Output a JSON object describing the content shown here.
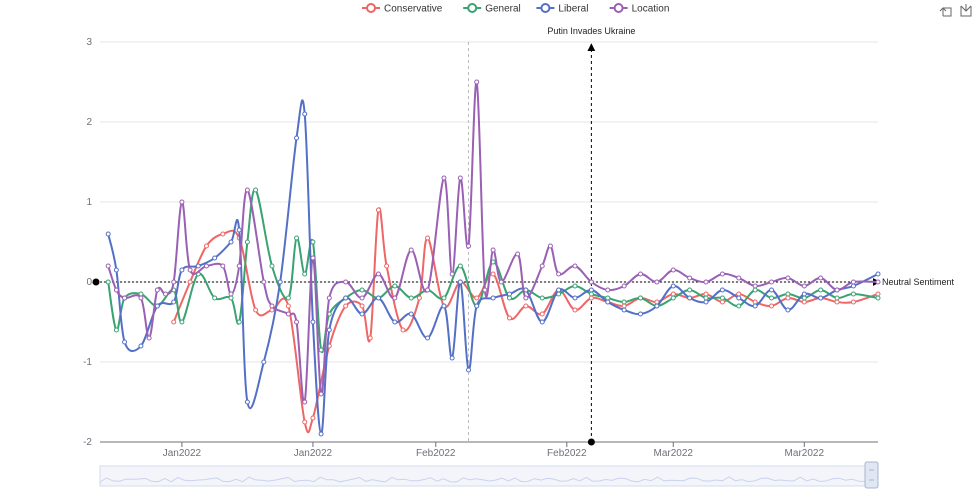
{
  "colors": {
    "Conservative": "#ee6666",
    "General": "#3ba272",
    "Liberal": "#5470c6",
    "Location": "#9a60b4",
    "grid": "#e6e6e6",
    "axis": "#6e7079"
  },
  "toolbox": {
    "icons": [
      "restore-icon",
      "save-image-icon"
    ]
  },
  "chart_data": {
    "type": "line",
    "title": "",
    "xlabel": "",
    "ylabel": "",
    "ylim": [
      -2,
      3
    ],
    "yticks": [
      3,
      2,
      1,
      0,
      -1,
      -2
    ],
    "xlim": [
      "2021-12-26",
      "2022-03-31"
    ],
    "xticks": [
      {
        "date": "2022-01-05",
        "label": "Jan2022"
      },
      {
        "date": "2022-01-21",
        "label": "Jan2022"
      },
      {
        "date": "2022-02-05",
        "label": "Feb2022"
      },
      {
        "date": "2022-02-21",
        "label": "Feb2022"
      },
      {
        "date": "2022-03-06",
        "label": "Mar2022"
      },
      {
        "date": "2022-03-22",
        "label": "Mar2022"
      }
    ],
    "grid": true,
    "legend": "top-center",
    "smooth": true,
    "neutral_line": {
      "label": "Neutral Sentiment",
      "y": 0
    },
    "event_line": {
      "label": "Putin Invades Ukraine",
      "date": "2022-02-24"
    },
    "dashed_marker_date": "2022-02-09",
    "series": [
      {
        "name": "Conservative",
        "points": [
          [
            "2022-01-04",
            -0.5
          ],
          [
            "2022-01-06",
            0.0
          ],
          [
            "2022-01-08",
            0.45
          ],
          [
            "2022-01-10",
            0.6
          ],
          [
            "2022-01-12",
            0.55
          ],
          [
            "2022-01-14",
            -0.35
          ],
          [
            "2022-01-16",
            -0.35
          ],
          [
            "2022-01-18",
            -0.3
          ],
          [
            "2022-01-20",
            -1.75
          ],
          [
            "2022-01-21",
            -1.7
          ],
          [
            "2022-01-23",
            -0.8
          ],
          [
            "2022-01-25",
            -0.3
          ],
          [
            "2022-01-27",
            -0.3
          ],
          [
            "2022-01-28",
            -0.7
          ],
          [
            "2022-01-29",
            0.9
          ],
          [
            "2022-01-30",
            0.2
          ],
          [
            "2022-02-01",
            -0.6
          ],
          [
            "2022-02-03",
            -0.2
          ],
          [
            "2022-02-04",
            0.55
          ],
          [
            "2022-02-06",
            -0.3
          ],
          [
            "2022-02-08",
            0.0
          ],
          [
            "2022-02-10",
            -0.2
          ],
          [
            "2022-02-12",
            0.1
          ],
          [
            "2022-02-14",
            -0.45
          ],
          [
            "2022-02-16",
            -0.3
          ],
          [
            "2022-02-18",
            -0.4
          ],
          [
            "2022-02-20",
            -0.1
          ],
          [
            "2022-02-22",
            -0.35
          ],
          [
            "2022-02-24",
            -0.2
          ],
          [
            "2022-02-26",
            -0.25
          ],
          [
            "2022-02-28",
            -0.3
          ],
          [
            "2022-03-02",
            -0.2
          ],
          [
            "2022-03-04",
            -0.25
          ],
          [
            "2022-03-06",
            -0.15
          ],
          [
            "2022-03-08",
            -0.2
          ],
          [
            "2022-03-10",
            -0.15
          ],
          [
            "2022-03-12",
            -0.25
          ],
          [
            "2022-03-14",
            -0.15
          ],
          [
            "2022-03-16",
            -0.25
          ],
          [
            "2022-03-18",
            -0.3
          ],
          [
            "2022-03-20",
            -0.2
          ],
          [
            "2022-03-22",
            -0.25
          ],
          [
            "2022-03-24",
            -0.2
          ],
          [
            "2022-03-26",
            -0.25
          ],
          [
            "2022-03-28",
            -0.25
          ],
          [
            "2022-03-31",
            -0.15
          ]
        ]
      },
      {
        "name": "General",
        "points": [
          [
            "2021-12-27",
            0.0
          ],
          [
            "2021-12-28",
            -0.6
          ],
          [
            "2021-12-29",
            -0.2
          ],
          [
            "2021-12-31",
            -0.15
          ],
          [
            "2022-01-02",
            -0.3
          ],
          [
            "2022-01-04",
            -0.1
          ],
          [
            "2022-01-05",
            -0.5
          ],
          [
            "2022-01-07",
            0.1
          ],
          [
            "2022-01-09",
            -0.2
          ],
          [
            "2022-01-11",
            -0.2
          ],
          [
            "2022-01-12",
            -0.5
          ],
          [
            "2022-01-13",
            0.5
          ],
          [
            "2022-01-14",
            1.15
          ],
          [
            "2022-01-16",
            0.2
          ],
          [
            "2022-01-18",
            -0.2
          ],
          [
            "2022-01-19",
            0.55
          ],
          [
            "2022-01-20",
            0.1
          ],
          [
            "2022-01-21",
            0.5
          ],
          [
            "2022-01-22",
            -0.85
          ],
          [
            "2022-01-23",
            -0.4
          ],
          [
            "2022-01-25",
            -0.2
          ],
          [
            "2022-01-27",
            -0.1
          ],
          [
            "2022-01-29",
            -0.2
          ],
          [
            "2022-01-31",
            -0.05
          ],
          [
            "2022-02-02",
            -0.2
          ],
          [
            "2022-02-04",
            -0.1
          ],
          [
            "2022-02-06",
            -0.2
          ],
          [
            "2022-02-08",
            0.2
          ],
          [
            "2022-02-10",
            -0.3
          ],
          [
            "2022-02-12",
            0.25
          ],
          [
            "2022-02-14",
            -0.2
          ],
          [
            "2022-02-16",
            -0.1
          ],
          [
            "2022-02-18",
            -0.2
          ],
          [
            "2022-02-20",
            -0.15
          ],
          [
            "2022-02-22",
            -0.05
          ],
          [
            "2022-02-24",
            -0.15
          ],
          [
            "2022-02-26",
            -0.2
          ],
          [
            "2022-02-28",
            -0.25
          ],
          [
            "2022-03-02",
            -0.2
          ],
          [
            "2022-03-04",
            -0.3
          ],
          [
            "2022-03-06",
            -0.2
          ],
          [
            "2022-03-08",
            -0.1
          ],
          [
            "2022-03-10",
            -0.2
          ],
          [
            "2022-03-12",
            -0.2
          ],
          [
            "2022-03-14",
            -0.3
          ],
          [
            "2022-03-16",
            -0.1
          ],
          [
            "2022-03-18",
            -0.2
          ],
          [
            "2022-03-20",
            -0.15
          ],
          [
            "2022-03-22",
            -0.2
          ],
          [
            "2022-03-24",
            -0.1
          ],
          [
            "2022-03-26",
            -0.2
          ],
          [
            "2022-03-28",
            -0.15
          ],
          [
            "2022-03-31",
            -0.2
          ]
        ]
      },
      {
        "name": "Liberal",
        "points": [
          [
            "2021-12-27",
            0.6
          ],
          [
            "2021-12-28",
            0.15
          ],
          [
            "2021-12-29",
            -0.75
          ],
          [
            "2021-12-31",
            -0.8
          ],
          [
            "2022-01-02",
            -0.3
          ],
          [
            "2022-01-04",
            -0.25
          ],
          [
            "2022-01-05",
            0.15
          ],
          [
            "2022-01-07",
            0.2
          ],
          [
            "2022-01-09",
            0.3
          ],
          [
            "2022-01-11",
            0.5
          ],
          [
            "2022-01-12",
            0.65
          ],
          [
            "2022-01-13",
            -1.5
          ],
          [
            "2022-01-15",
            -1.0
          ],
          [
            "2022-01-17",
            0.0
          ],
          [
            "2022-01-19",
            1.8
          ],
          [
            "2022-01-20",
            2.1
          ],
          [
            "2022-01-21",
            -0.5
          ],
          [
            "2022-01-22",
            -1.9
          ],
          [
            "2022-01-23",
            -0.6
          ],
          [
            "2022-01-25",
            -0.2
          ],
          [
            "2022-01-27",
            -0.4
          ],
          [
            "2022-01-29",
            -0.2
          ],
          [
            "2022-01-31",
            -0.5
          ],
          [
            "2022-02-02",
            -0.4
          ],
          [
            "2022-02-04",
            -0.7
          ],
          [
            "2022-02-06",
            -0.3
          ],
          [
            "2022-02-07",
            -0.95
          ],
          [
            "2022-02-08",
            0.0
          ],
          [
            "2022-02-09",
            -1.1
          ],
          [
            "2022-02-10",
            -0.3
          ],
          [
            "2022-02-12",
            -0.2
          ],
          [
            "2022-02-14",
            -0.15
          ],
          [
            "2022-02-16",
            -0.1
          ],
          [
            "2022-02-18",
            -0.5
          ],
          [
            "2022-02-20",
            -0.1
          ],
          [
            "2022-02-22",
            -0.2
          ],
          [
            "2022-02-24",
            -0.1
          ],
          [
            "2022-02-26",
            -0.25
          ],
          [
            "2022-02-28",
            -0.35
          ],
          [
            "2022-03-02",
            -0.4
          ],
          [
            "2022-03-04",
            -0.3
          ],
          [
            "2022-03-06",
            -0.05
          ],
          [
            "2022-03-08",
            -0.2
          ],
          [
            "2022-03-10",
            -0.25
          ],
          [
            "2022-03-12",
            -0.1
          ],
          [
            "2022-03-14",
            -0.2
          ],
          [
            "2022-03-16",
            -0.3
          ],
          [
            "2022-03-18",
            -0.1
          ],
          [
            "2022-03-20",
            -0.35
          ],
          [
            "2022-03-22",
            -0.15
          ],
          [
            "2022-03-24",
            -0.2
          ],
          [
            "2022-03-26",
            -0.1
          ],
          [
            "2022-03-28",
            -0.05
          ],
          [
            "2022-03-31",
            0.1
          ]
        ]
      },
      {
        "name": "Location",
        "points": [
          [
            "2021-12-27",
            0.2
          ],
          [
            "2021-12-28",
            -0.1
          ],
          [
            "2021-12-29",
            -0.2
          ],
          [
            "2021-12-31",
            -0.2
          ],
          [
            "2022-01-01",
            -0.7
          ],
          [
            "2022-01-02",
            -0.1
          ],
          [
            "2022-01-03",
            -0.15
          ],
          [
            "2022-01-04",
            0.0
          ],
          [
            "2022-01-05",
            1.0
          ],
          [
            "2022-01-06",
            0.15
          ],
          [
            "2022-01-08",
            0.2
          ],
          [
            "2022-01-10",
            0.2
          ],
          [
            "2022-01-11",
            -0.15
          ],
          [
            "2022-01-12",
            0.2
          ],
          [
            "2022-01-13",
            1.15
          ],
          [
            "2022-01-15",
            0.0
          ],
          [
            "2022-01-16",
            -0.3
          ],
          [
            "2022-01-18",
            -0.4
          ],
          [
            "2022-01-19",
            -0.5
          ],
          [
            "2022-01-20",
            -1.5
          ],
          [
            "2022-01-21",
            0.3
          ],
          [
            "2022-01-22",
            -1.4
          ],
          [
            "2022-01-23",
            -0.2
          ],
          [
            "2022-01-25",
            0.0
          ],
          [
            "2022-01-27",
            -0.2
          ],
          [
            "2022-01-29",
            0.1
          ],
          [
            "2022-01-31",
            -0.2
          ],
          [
            "2022-02-02",
            0.4
          ],
          [
            "2022-02-04",
            -0.1
          ],
          [
            "2022-02-06",
            1.3
          ],
          [
            "2022-02-07",
            0.1
          ],
          [
            "2022-02-08",
            1.3
          ],
          [
            "2022-02-09",
            0.45
          ],
          [
            "2022-02-10",
            2.5
          ],
          [
            "2022-02-11",
            -0.1
          ],
          [
            "2022-02-12",
            0.4
          ],
          [
            "2022-02-13",
            0.0
          ],
          [
            "2022-02-15",
            0.35
          ],
          [
            "2022-02-16",
            -0.2
          ],
          [
            "2022-02-18",
            0.2
          ],
          [
            "2022-02-19",
            0.45
          ],
          [
            "2022-02-20",
            0.1
          ],
          [
            "2022-02-22",
            0.2
          ],
          [
            "2022-02-24",
            0.0
          ],
          [
            "2022-02-26",
            -0.1
          ],
          [
            "2022-02-28",
            -0.05
          ],
          [
            "2022-03-02",
            0.1
          ],
          [
            "2022-03-04",
            0.0
          ],
          [
            "2022-03-06",
            0.15
          ],
          [
            "2022-03-08",
            0.05
          ],
          [
            "2022-03-10",
            0.0
          ],
          [
            "2022-03-12",
            0.1
          ],
          [
            "2022-03-14",
            0.05
          ],
          [
            "2022-03-16",
            -0.05
          ],
          [
            "2022-03-18",
            0.0
          ],
          [
            "2022-03-20",
            0.05
          ],
          [
            "2022-03-22",
            -0.05
          ],
          [
            "2022-03-24",
            0.05
          ],
          [
            "2022-03-26",
            -0.1
          ],
          [
            "2022-03-28",
            0.0
          ],
          [
            "2022-03-31",
            0.0
          ]
        ]
      }
    ]
  }
}
